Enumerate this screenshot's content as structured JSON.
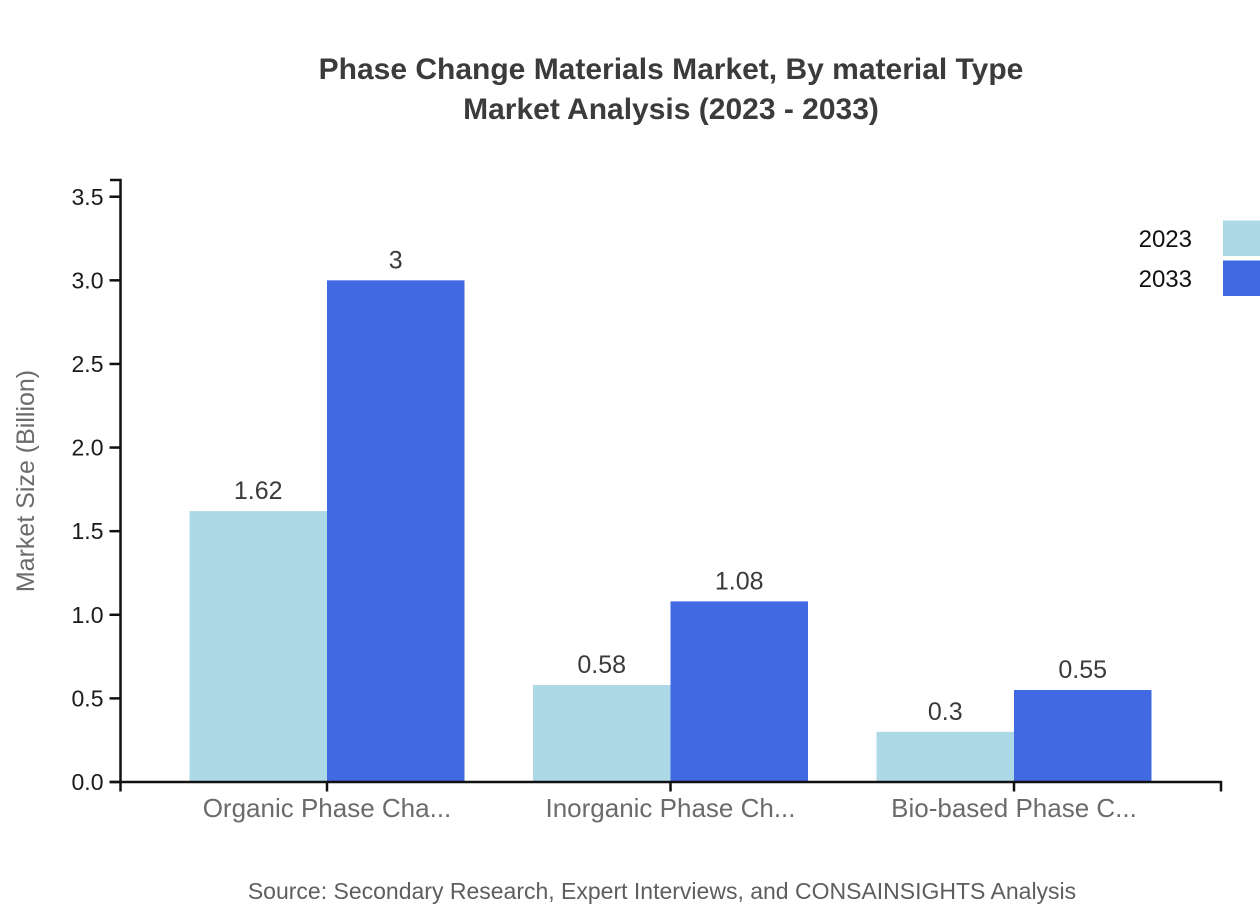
{
  "chart_data": {
    "type": "bar",
    "title_lines": [
      "Phase Change Materials Market, By material Type",
      "Market Analysis (2023 - 2033)"
    ],
    "xlabel": "",
    "ylabel": "Market Size (Billion)",
    "categories": [
      "Organic Phase Cha...",
      "Inorganic Phase Ch...",
      "Bio-based Phase C..."
    ],
    "series": [
      {
        "name": "2023",
        "color": "#ADD8E6",
        "values": [
          1.62,
          0.58,
          0.3
        ],
        "value_labels": [
          "1.62",
          "0.58",
          "0.3"
        ]
      },
      {
        "name": "2033",
        "color": "#4169E1",
        "values": [
          3,
          1.08,
          0.55
        ],
        "value_labels": [
          "3",
          "1.08",
          "0.55"
        ]
      }
    ],
    "ylim": [
      0,
      3.6
    ],
    "yticks": [
      0,
      0.5,
      1,
      1.5,
      2,
      2.5,
      3,
      3.5
    ],
    "ytick_labels": [
      "0.0",
      "0.5",
      "1.0",
      "1.5",
      "2.0",
      "2.5",
      "3.0",
      "3.5"
    ],
    "grid": false,
    "legend_position": "top-right"
  },
  "source_note": "Source: Secondary Research, Expert Interviews, and CONSAINSIGHTS Analysis",
  "colors": {
    "series_2023": "#ADD8E6",
    "series_2033": "#4169E1",
    "axis": "#111111",
    "title_text": "#3b3b3b",
    "value_label_text": "#3a3a3a",
    "category_label_text": "#6b6b6b",
    "tick_label_text": "#1a1a1a",
    "source_text": "#5e5e5e",
    "background": "#ffffff"
  }
}
